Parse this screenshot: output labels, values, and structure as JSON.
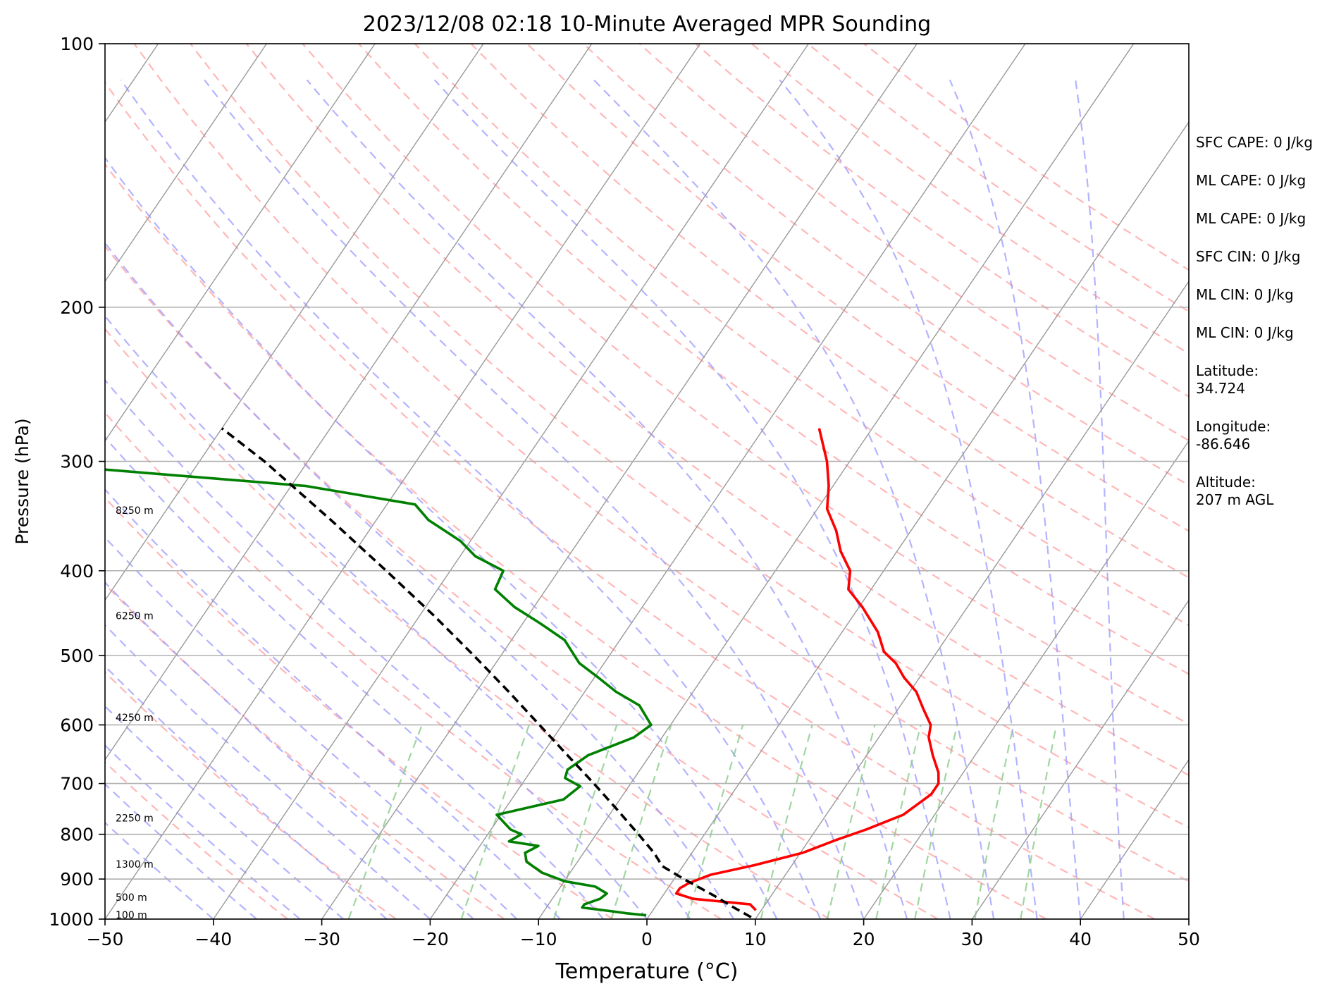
{
  "chart_data": {
    "type": "line",
    "title": "2023/12/08 02:18 10-Minute Averaged MPR Sounding",
    "xlabel": "Temperature (°C)",
    "ylabel": "Pressure (hPa)",
    "xlim": [
      -50,
      50
    ],
    "ylim": [
      1000,
      100
    ],
    "yscale": "log",
    "skew": true,
    "grid": true,
    "x_ticks": [
      -50,
      -40,
      -30,
      -20,
      -10,
      0,
      10,
      20,
      30,
      40,
      50
    ],
    "y_ticks": [
      1000,
      900,
      800,
      700,
      600,
      500,
      400,
      300,
      200,
      100
    ],
    "colors": {
      "temperature": "#ff0000",
      "dewpoint": "#008000",
      "parcel": "#000000",
      "dry_adiabats": "#ff9999",
      "moist_adiabats": "#9999ff",
      "mixing_ratio": "#88cc88",
      "isotherms": "#999999"
    },
    "series": [
      {
        "role": "temperature",
        "p": [
          977,
          962,
          948,
          935,
          922,
          910,
          890,
          868,
          840,
          812,
          790,
          760,
          720,
          700,
          680,
          650,
          620,
          600,
          575,
          550,
          530,
          510,
          495,
          470,
          440,
          420,
          400,
          380,
          360,
          340,
          320,
          300,
          275
        ],
        "t": [
          9.5,
          8.6,
          3.0,
          1.1,
          1.1,
          1.6,
          3.1,
          6.5,
          10.2,
          12.5,
          14.6,
          17.1,
          18.4,
          18.4,
          17.7,
          16.1,
          14.6,
          14.0,
          12.3,
          10.6,
          8.6,
          6.9,
          5.1,
          3.3,
          0.3,
          -2.1,
          -3.1,
          -5.2,
          -6.9,
          -9.1,
          -10.4,
          -12.1,
          -14.9
        ]
      },
      {
        "role": "dewpoint",
        "p": [
          990,
          985,
          980,
          970,
          962,
          948,
          935,
          918,
          905,
          885,
          860,
          840,
          825,
          815,
          800,
          790,
          760,
          730,
          705,
          690,
          675,
          650,
          620,
          600,
          570,
          550,
          530,
          510,
          480,
          460,
          440,
          420,
          400,
          385,
          370,
          350,
          336,
          320,
          300
        ],
        "t": [
          -0.3,
          -2.2,
          -3.6,
          -6.7,
          -6.7,
          -5.6,
          -5.3,
          -6.8,
          -10.0,
          -12.6,
          -14.7,
          -15.4,
          -14.6,
          -17.6,
          -16.9,
          -18.2,
          -20.4,
          -15.2,
          -14.5,
          -16.4,
          -16.7,
          -15.7,
          -12.6,
          -11.8,
          -14.1,
          -17.1,
          -19.6,
          -22.3,
          -25.1,
          -28.3,
          -31.8,
          -34.7,
          -35.1,
          -38.6,
          -40.9,
          -45.2,
          -47.4,
          -58.7,
          -88.0
        ]
      },
      {
        "role": "parcel",
        "p": [
          995,
          970,
          940,
          900,
          870,
          840,
          800,
          750,
          700,
          650,
          600,
          550,
          500,
          450,
          400,
          350,
          300,
          275
        ],
        "t": [
          9.5,
          7.3,
          4.7,
          0.9,
          -1.9,
          -3.5,
          -6.1,
          -9.6,
          -13.4,
          -17.6,
          -22.1,
          -27.0,
          -32.5,
          -38.7,
          -45.9,
          -54.2,
          -64.0,
          -70.0
        ]
      }
    ],
    "height_labels": [
      "100 m",
      "500 m",
      "1300 m",
      "2250 m",
      "4250 m",
      "6250 m",
      "8250 m"
    ],
    "height_label_pressures": [
      1000,
      955,
      875,
      775,
      595,
      455,
      345
    ],
    "indices": [
      "SFC CAPE: 0 J/kg",
      "ML CAPE: 0 J/kg",
      "ML CAPE: 0 J/kg",
      "SFC CIN: 0 J/kg",
      "ML CIN: 0 J/kg",
      "ML CIN: 0 J/kg",
      "Latitude:\n34.724",
      "Longitude:\n-86.646",
      "Altitude:\n207 m AGL"
    ]
  }
}
